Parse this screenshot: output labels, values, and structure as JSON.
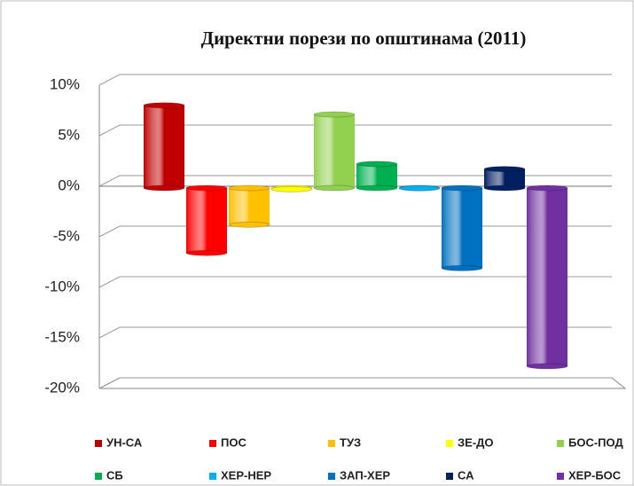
{
  "chart_data": {
    "type": "bar",
    "title": "Директни порези по општинама  (2011)",
    "series": [
      {
        "name": "УН-СА",
        "color": "#c00000",
        "values": [
          8.0
        ]
      },
      {
        "name": "ПОС",
        "color": "#ff0000",
        "values": [
          -6.6
        ]
      },
      {
        "name": "ТУЗ",
        "color": "#ffc000",
        "values": [
          -3.8
        ]
      },
      {
        "name": "ЗЕ-ДО",
        "color": "#ffff00",
        "values": [
          -0.3
        ]
      },
      {
        "name": "БОС-ПОД",
        "color": "#92d050",
        "values": [
          7.1
        ]
      },
      {
        "name": "СБ",
        "color": "#00b050",
        "values": [
          2.2
        ]
      },
      {
        "name": "ХЕР-НЕР",
        "color": "#00b0f0",
        "values": [
          -0.2
        ]
      },
      {
        "name": "ЗАП-ХЕР",
        "color": "#0070c0",
        "values": [
          -8.1
        ]
      },
      {
        "name": "СА",
        "color": "#002060",
        "values": [
          1.7
        ]
      },
      {
        "name": "ХЕР-БОС",
        "color": "#7030a0",
        "values": [
          -17.8
        ]
      }
    ],
    "ylim": [
      -20,
      10
    ],
    "yticks": [
      {
        "value": -20,
        "label": "-20%"
      },
      {
        "value": -15,
        "label": "-15%"
      },
      {
        "value": -10,
        "label": "-10%"
      },
      {
        "value": -5,
        "label": "-5%"
      },
      {
        "value": 0,
        "label": "0%"
      },
      {
        "value": 5,
        "label": "5%"
      },
      {
        "value": 10,
        "label": "10%"
      }
    ],
    "grid": true,
    "legend": "bottom"
  }
}
